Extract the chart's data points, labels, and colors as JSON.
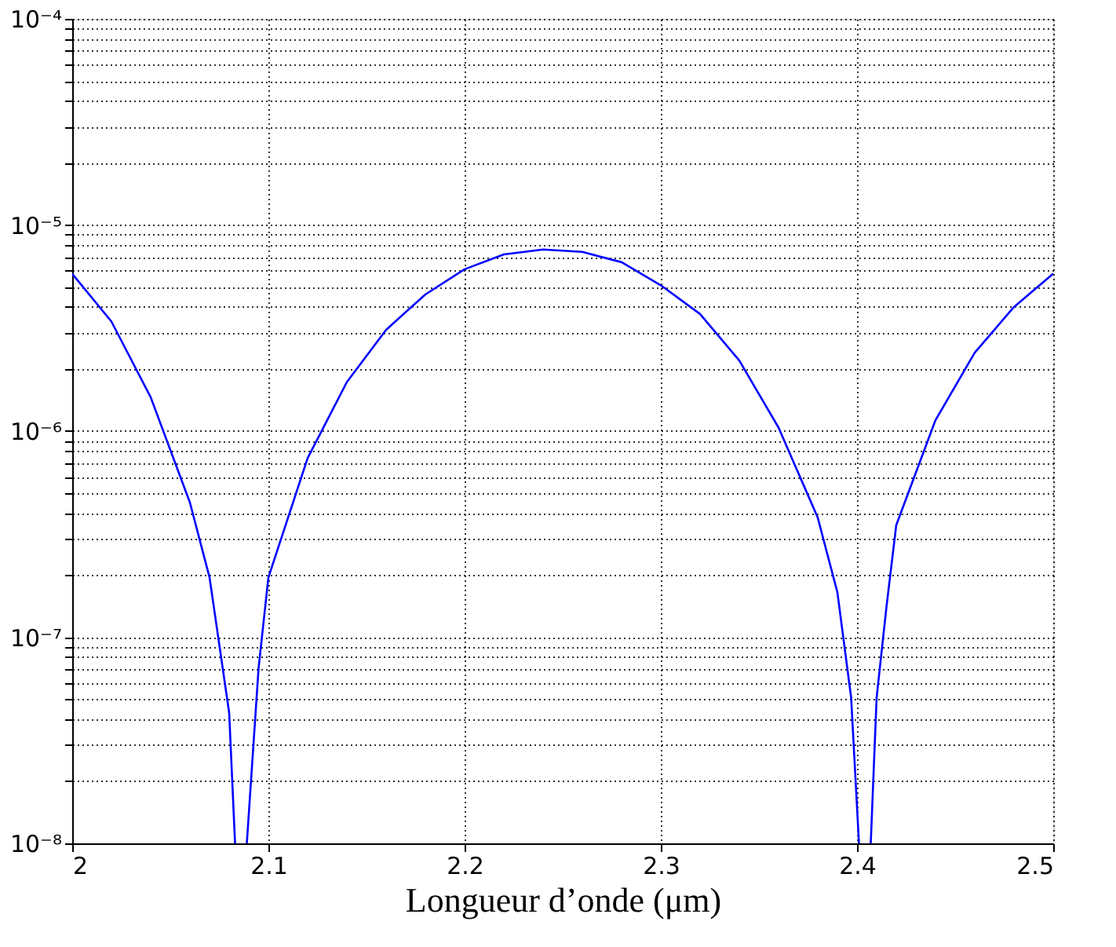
{
  "chart_data": {
    "type": "line",
    "xlabel": "Longueur d’onde (μm)",
    "x": [
      2.0,
      2.02,
      2.04,
      2.06,
      2.07,
      2.08,
      2.083,
      2.086,
      2.089,
      2.095,
      2.1,
      2.12,
      2.14,
      2.16,
      2.18,
      2.2,
      2.22,
      2.24,
      2.26,
      2.28,
      2.3,
      2.32,
      2.34,
      2.36,
      2.38,
      2.39,
      2.397,
      2.401,
      2.404,
      2.407,
      2.41,
      2.415,
      2.42,
      2.44,
      2.46,
      2.48,
      2.5
    ],
    "series": [
      {
        "color": "#0000ff",
        "values": [
          5.8e-06,
          3.4e-06,
          1.46e-06,
          4.5e-07,
          1.95e-07,
          4.3e-08,
          1e-08,
          null,
          1e-08,
          7.1e-08,
          1.95e-07,
          7.4e-07,
          1.73e-06,
          3.1e-06,
          4.6e-06,
          6.1e-06,
          7.2e-06,
          7.6e-06,
          7.4e-06,
          6.6e-06,
          5.1e-06,
          3.7e-06,
          2.2e-06,
          1.04e-06,
          3.8e-07,
          1.65e-07,
          5.1e-08,
          1e-08,
          null,
          1e-08,
          5.1e-08,
          1.4e-07,
          3.5e-07,
          1.13e-06,
          2.4e-06,
          4e-06,
          5.8e-06
        ]
      }
    ],
    "xlim": [
      2,
      2.5
    ],
    "xticks": [
      2,
      2.1,
      2.2,
      2.3,
      2.4,
      2.5
    ],
    "log": "y",
    "ylim": [
      1e-08,
      0.0001
    ],
    "yticks": [
      {
        "value": 1e-08,
        "label": "10⁻⁸"
      },
      {
        "value": 2e-08,
        "label": null
      },
      {
        "value": 3e-08,
        "label": null
      },
      {
        "value": 4e-08,
        "label": null
      },
      {
        "value": 5e-08,
        "label": null
      },
      {
        "value": 6e-08,
        "label": null
      },
      {
        "value": 7e-08,
        "label": null
      },
      {
        "value": 8e-08,
        "label": null
      },
      {
        "value": 9e-08,
        "label": null
      },
      {
        "value": 1e-07,
        "label": "10⁻⁷"
      },
      {
        "value": 2e-07,
        "label": null
      },
      {
        "value": 3e-07,
        "label": null
      },
      {
        "value": 4e-07,
        "label": null
      },
      {
        "value": 5e-07,
        "label": null
      },
      {
        "value": 6e-07,
        "label": null
      },
      {
        "value": 7e-07,
        "label": null
      },
      {
        "value": 8e-07,
        "label": null
      },
      {
        "value": 9e-07,
        "label": null
      },
      {
        "value": 1e-06,
        "label": "10⁻⁶"
      },
      {
        "value": 2e-06,
        "label": null
      },
      {
        "value": 3e-06,
        "label": null
      },
      {
        "value": 4e-06,
        "label": null
      },
      {
        "value": 5e-06,
        "label": null
      },
      {
        "value": 6e-06,
        "label": null
      },
      {
        "value": 7e-06,
        "label": null
      },
      {
        "value": 8e-06,
        "label": null
      },
      {
        "value": 9e-06,
        "label": null
      },
      {
        "value": 1e-05,
        "label": "10⁻⁵"
      },
      {
        "value": 2e-05,
        "label": null
      },
      {
        "value": 3e-05,
        "label": null
      },
      {
        "value": 4e-05,
        "label": null
      },
      {
        "value": 5e-05,
        "label": null
      },
      {
        "value": 6e-05,
        "label": null
      },
      {
        "value": 7e-05,
        "label": null
      },
      {
        "value": 8e-05,
        "label": null
      },
      {
        "value": 9e-05,
        "label": null
      },
      {
        "value": 0.0001,
        "label": "10⁻⁴"
      }
    ],
    "grid": true,
    "line_style": "solid",
    "marker": "none"
  }
}
